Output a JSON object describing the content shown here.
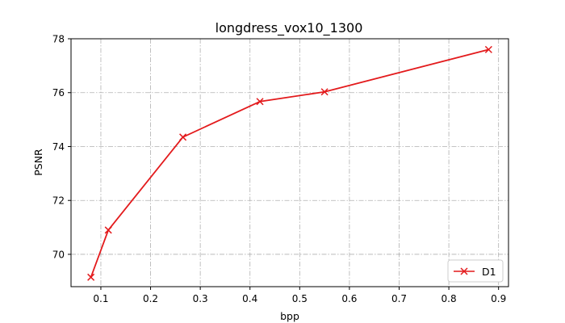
{
  "chart_data": {
    "type": "line",
    "title": "longdress_vox10_1300",
    "xlabel": "bpp",
    "ylabel": "PSNR",
    "xlim": [
      0.04,
      0.92
    ],
    "ylim": [
      68.8,
      78.0
    ],
    "xticks": [
      0.1,
      0.2,
      0.3,
      0.4,
      0.5,
      0.6,
      0.7,
      0.8,
      0.9
    ],
    "yticks": [
      70,
      72,
      74,
      76,
      78
    ],
    "grid": true,
    "legend_position": "lower-right",
    "series": [
      {
        "name": "D1",
        "color": "#e31a1c",
        "marker": "x",
        "x": [
          0.08,
          0.115,
          0.265,
          0.42,
          0.55,
          0.88
        ],
        "y": [
          69.15,
          70.9,
          74.35,
          75.67,
          76.03,
          77.6
        ]
      }
    ]
  }
}
